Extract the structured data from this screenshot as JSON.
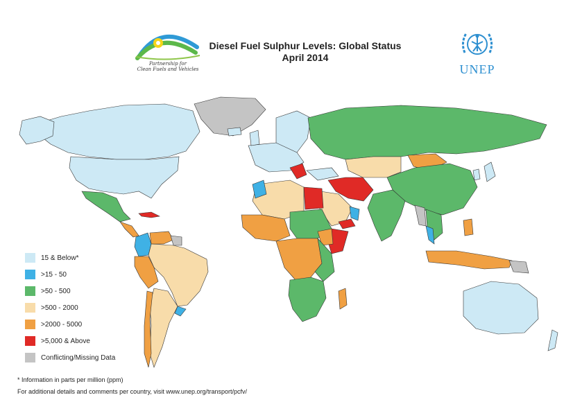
{
  "title": {
    "line1": "Diesel Fuel Sulphur Levels: Global Status",
    "line2": "April 2014"
  },
  "logos": {
    "pcfv_text_line1": "Partnership for",
    "pcfv_text_line2": "Clean Fuels and Vehicles",
    "unep_text": "UNEP"
  },
  "legend": {
    "items": [
      {
        "label": "15 & Below*",
        "color": "#cde9f5"
      },
      {
        "label": ">15 - 50",
        "color": "#3fb1e5"
      },
      {
        "label": ">50 - 500",
        "color": "#5cb86a"
      },
      {
        "label": ">500 - 2000",
        "color": "#f8dcaa"
      },
      {
        "label": ">2000 - 5000",
        "color": "#f0a043"
      },
      {
        "label": ">5,000 & Above",
        "color": "#e02a26"
      },
      {
        "label": "Conflicting/Missing Data",
        "color": "#c4c4c4"
      }
    ]
  },
  "footnotes": {
    "ppm_note": "* Information in parts per million (ppm)",
    "details_note": "For additional details and comments per country, visit www.unep.org/transport/pcfv/"
  }
}
